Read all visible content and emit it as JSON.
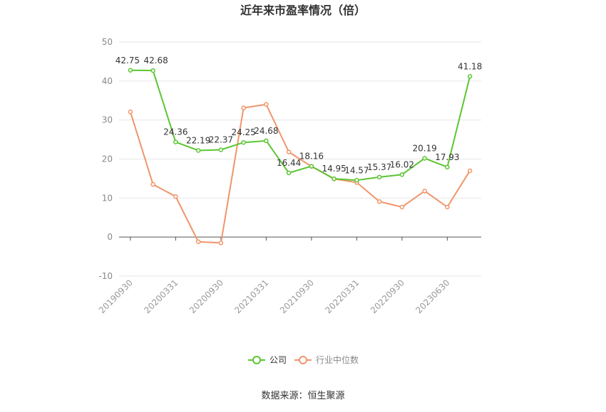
{
  "chart_data": {
    "type": "line",
    "title": "近年来市盈率情况（倍）",
    "source": "数据来源：恒生聚源",
    "ylim": [
      -10,
      50
    ],
    "yticks": [
      -10,
      0,
      10,
      20,
      30,
      40,
      50
    ],
    "x_tick_labels": [
      "20190930",
      "20200331",
      "20200930",
      "20210331",
      "20210930",
      "20220331",
      "20220930",
      "20230630"
    ],
    "x_count": 16,
    "x_tick_positions": [
      0,
      2,
      4,
      6,
      8,
      10,
      12,
      14
    ],
    "grid": true,
    "legend_placement": "bottom",
    "series": [
      {
        "name": "公司",
        "color": "#5cc532",
        "values": [
          42.75,
          42.68,
          24.36,
          22.19,
          22.37,
          24.25,
          24.68,
          16.44,
          18.16,
          14.95,
          14.57,
          15.37,
          16.02,
          20.19,
          17.93,
          41.18
        ],
        "labels": [
          "42.75",
          "42.68",
          "24.36",
          "22.19",
          "22.37",
          "24.25",
          "24.68",
          "16.44",
          "18.16",
          "14.95",
          "14.57",
          "15.37",
          "16.02",
          "20.19",
          "17.93",
          "41.18"
        ]
      },
      {
        "name": "行业中位数",
        "color": "#f0956a",
        "values": [
          32.1,
          13.5,
          10.4,
          -1.2,
          -1.5,
          33.1,
          34.0,
          21.8,
          18.1,
          14.9,
          14.0,
          9.1,
          7.7,
          11.8,
          7.7,
          17.0
        ]
      }
    ]
  }
}
